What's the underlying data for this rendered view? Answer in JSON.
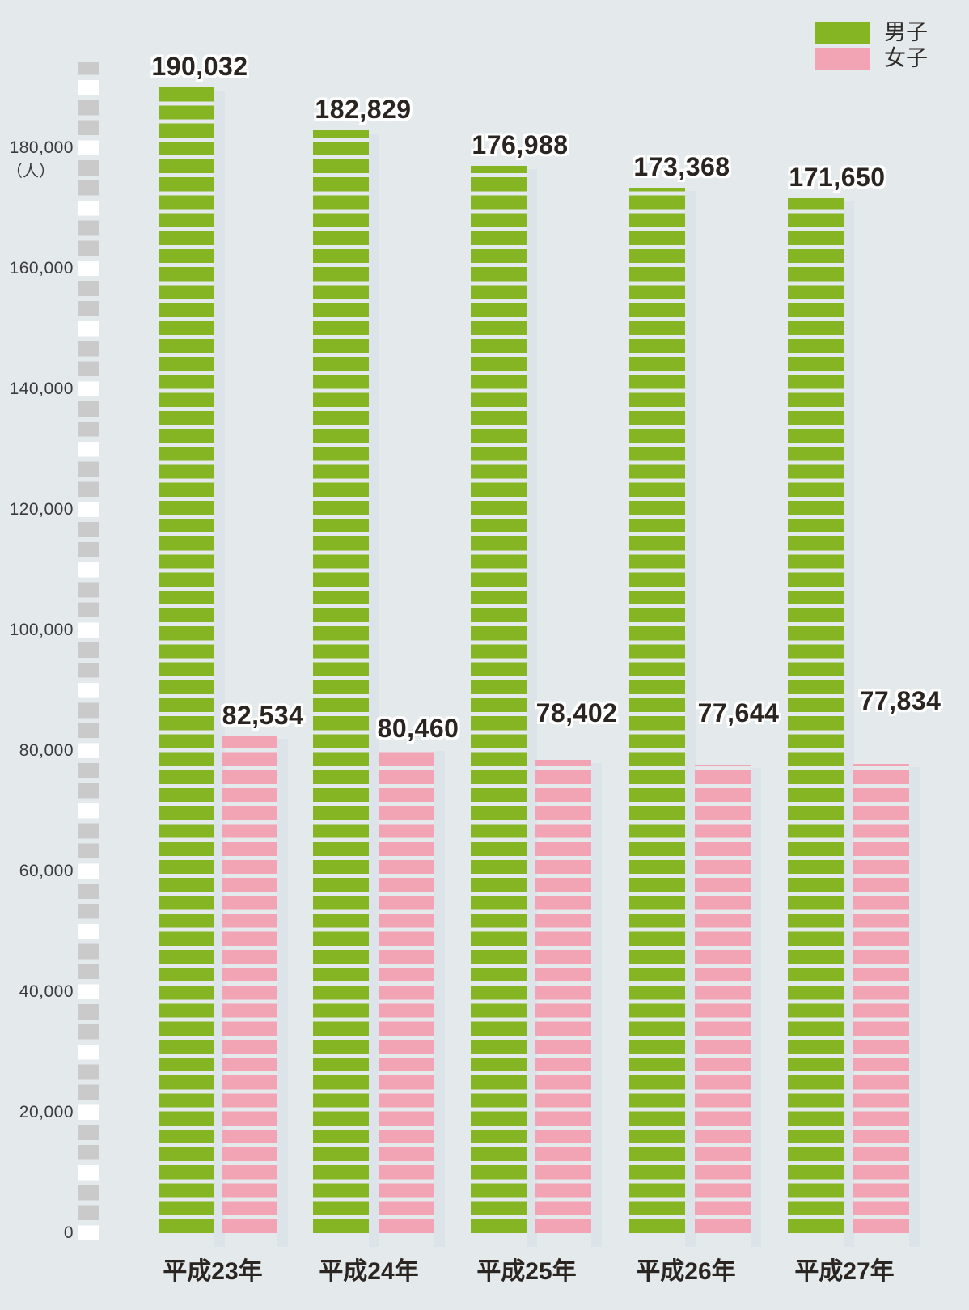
{
  "chart_data": {
    "type": "bar",
    "title": "",
    "categories": [
      "平成23年",
      "平成24年",
      "平成25年",
      "平成26年",
      "平成27年"
    ],
    "series": [
      {
        "name": "男子",
        "color": "#86b524",
        "values": [
          190032,
          182829,
          176988,
          173368,
          171650
        ]
      },
      {
        "name": "女子",
        "color": "#f2a3b4",
        "values": [
          82534,
          80460,
          78402,
          77644,
          77834
        ]
      }
    ],
    "value_labels": {
      "male": [
        "190,032",
        "182,829",
        "176,988",
        "173,368",
        "171,650"
      ],
      "female": [
        "82,534",
        "80,460",
        "78,402",
        "77,644",
        "77,834"
      ]
    },
    "xlabel": "",
    "ylabel": "（人）",
    "ylim": [
      0,
      180000
    ],
    "ytick_step": 20000,
    "grid": false,
    "legend_position": "top-right",
    "bar_style": "horizontal-striped"
  },
  "legend": {
    "male_label": "男子",
    "female_label": "女子"
  },
  "y_axis": {
    "unit": "（人）",
    "ticks": [
      "180,000",
      "160,000",
      "140,000",
      "120,000",
      "100,000",
      "80,000",
      "60,000",
      "40,000",
      "20,000",
      "0"
    ]
  },
  "groups": [
    {
      "label": "平成23年",
      "male_value": "190,032",
      "female_value": "82,534"
    },
    {
      "label": "平成24年",
      "male_value": "182,829",
      "female_value": "80,460"
    },
    {
      "label": "平成25年",
      "male_value": "176,988",
      "female_value": "78,402"
    },
    {
      "label": "平成26年",
      "male_value": "173,368",
      "female_value": "77,644"
    },
    {
      "label": "平成27年",
      "male_value": "171,650",
      "female_value": "77,834"
    }
  ],
  "colors": {
    "male": "#86b524",
    "female": "#f2a3b4",
    "background": "#e4e9ec",
    "axis_block_gray": "#c9cac9",
    "axis_block_white": "#ffffff",
    "bar_shadow": "#dde4e9",
    "label_text": "#2b2521",
    "tick_text": "#3a3a3a"
  }
}
